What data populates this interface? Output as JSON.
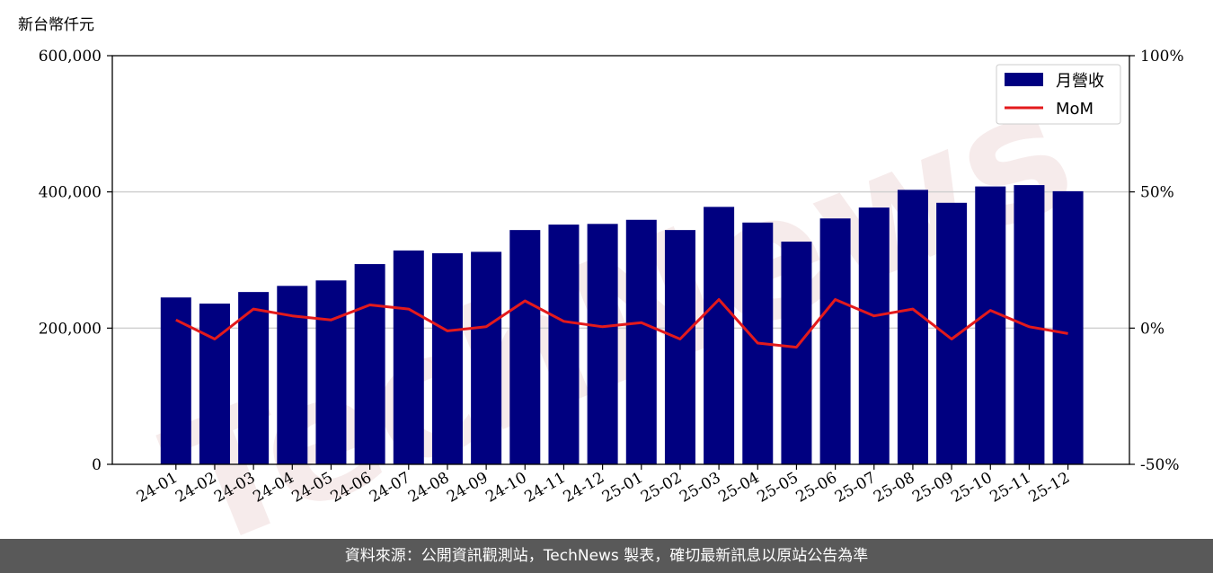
{
  "watermark": "TechNews",
  "footer": {
    "source_text": "資料來源：公開資訊觀測站，TechNews 製表，確切最新訊息以原站公告為準"
  },
  "colors": {
    "bar": "#000080",
    "line": "#e31a1c",
    "grid": "#d0d0d0",
    "footer_bg": "#595959"
  },
  "chart_data": {
    "type": "bar",
    "unit_label": "新台幣仟元",
    "categories": [
      "24-01",
      "24-02",
      "24-03",
      "24-04",
      "24-05",
      "24-06",
      "24-07",
      "24-08",
      "24-09",
      "24-10",
      "24-11",
      "24-12",
      "25-01",
      "25-02",
      "25-03",
      "25-04",
      "25-05",
      "25-06",
      "25-07",
      "25-08",
      "25-09",
      "25-10",
      "25-11",
      "25-12"
    ],
    "series": [
      {
        "name": "月營收",
        "axis": "left",
        "type": "bar",
        "values": [
          245000,
          236000,
          253000,
          262000,
          270000,
          294000,
          314000,
          310000,
          312000,
          344000,
          352000,
          353000,
          359000,
          344000,
          378000,
          355000,
          327000,
          361000,
          377000,
          403000,
          384000,
          408000,
          410000,
          401000
        ]
      },
      {
        "name": "MoM",
        "axis": "right",
        "type": "line",
        "values": [
          3,
          -4,
          7,
          4.5,
          3,
          8.5,
          7,
          -1,
          0.5,
          10,
          2.5,
          0.5,
          2,
          -4,
          10.5,
          -5.5,
          -7,
          10.5,
          4.5,
          7,
          -4,
          6.5,
          0.5,
          -2
        ]
      }
    ],
    "left_axis": {
      "ylim": [
        0,
        600000
      ],
      "ticks": [
        0,
        200000,
        400000,
        600000
      ],
      "tick_labels": [
        "0",
        "200,000",
        "400,000",
        "600,000"
      ]
    },
    "right_axis": {
      "ylim": [
        -50,
        100
      ],
      "ticks": [
        -50,
        0,
        50,
        100
      ],
      "tick_labels": [
        "-50%",
        "0%",
        "50%",
        "100%"
      ]
    },
    "grid": "horizontal",
    "legend_position": "top-right"
  }
}
